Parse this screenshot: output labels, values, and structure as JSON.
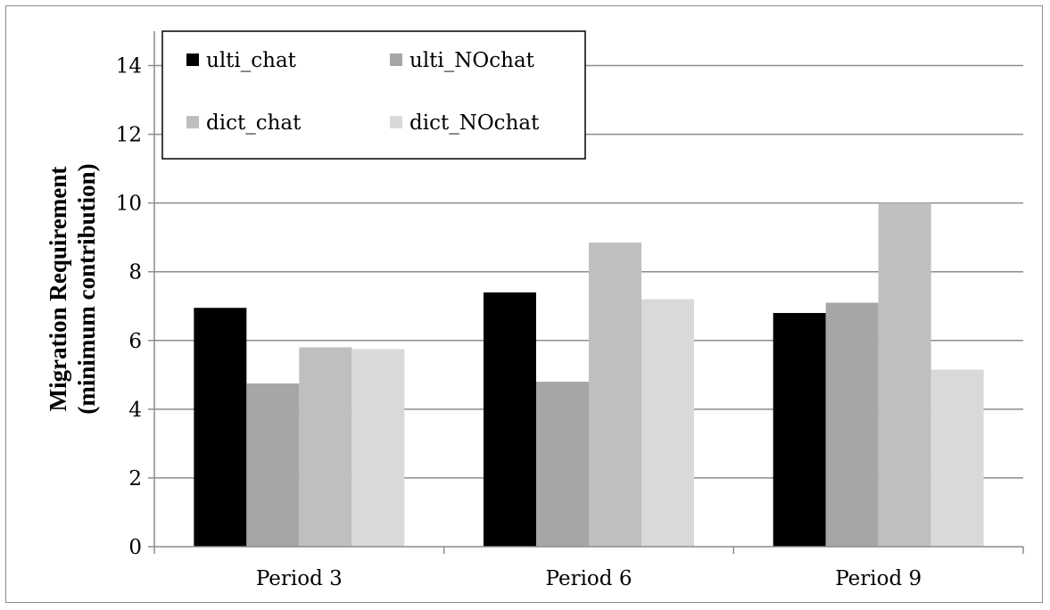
{
  "chart_data": {
    "type": "bar",
    "categories": [
      "Period 3",
      "Period 6",
      "Period 9"
    ],
    "series": [
      {
        "name": "ulti_chat",
        "color": "#000000",
        "values": [
          6.95,
          7.4,
          6.8
        ]
      },
      {
        "name": "ulti_NOchat",
        "color": "#a6a6a6",
        "values": [
          4.75,
          4.8,
          7.1
        ]
      },
      {
        "name": "dict_chat",
        "color": "#bfbfbf",
        "values": [
          5.8,
          8.85,
          10.0
        ]
      },
      {
        "name": "dict_NOchat",
        "color": "#d9d9d9",
        "values": [
          5.75,
          7.2,
          5.15
        ]
      }
    ],
    "title": "",
    "xlabel": "",
    "ylabel": [
      "Migration Requirement",
      "(minimum contribution)"
    ],
    "ylim": [
      0,
      15
    ],
    "yticks": [
      0,
      2,
      4,
      6,
      8,
      10,
      12,
      14
    ],
    "grid": true,
    "legend_position": "top-left"
  }
}
